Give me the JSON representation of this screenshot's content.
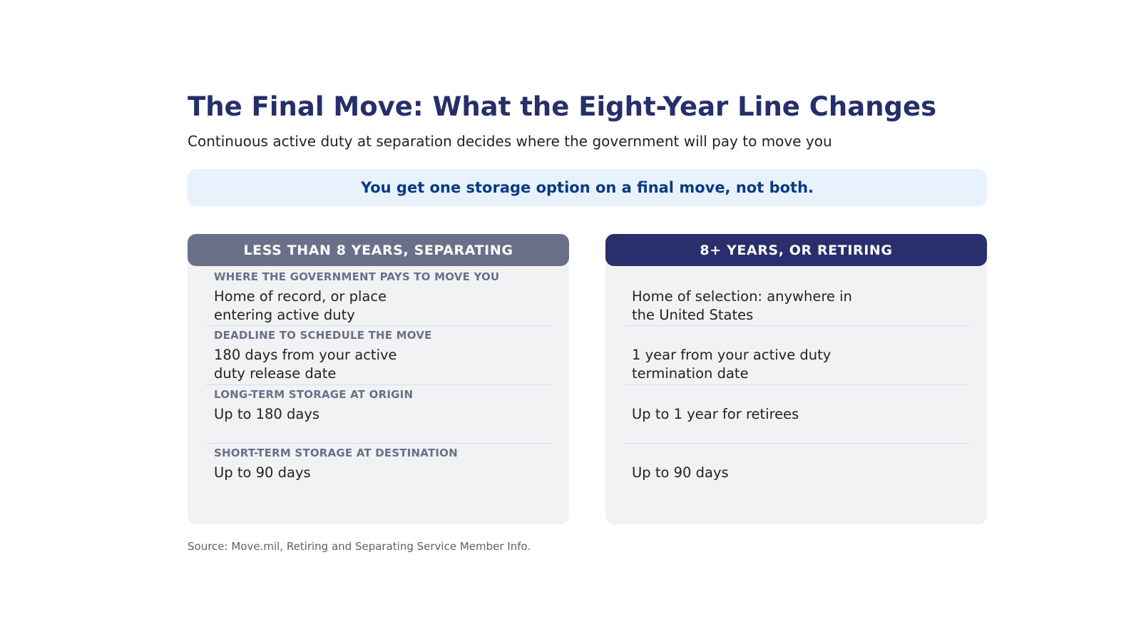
{
  "title": "The Final Move: What the Eight-Year Line Changes",
  "subtitle": "Continuous active duty at separation decides where the government will pay to move you",
  "callout": "You get one storage option on a final move, not both.",
  "columns": [
    {
      "header": "LESS THAN 8 YEARS, SEPARATING",
      "rows": [
        {
          "label": "WHERE THE GOVERNMENT PAYS TO MOVE YOU",
          "value": "Home of record, or place entering active duty"
        },
        {
          "label": "DEADLINE TO SCHEDULE THE MOVE",
          "value": "180 days from your active duty release date"
        },
        {
          "label": "LONG-TERM STORAGE AT ORIGIN",
          "value": "Up to 180 days"
        },
        {
          "label": "SHORT-TERM STORAGE AT DESTINATION",
          "value": "Up to 90 days"
        }
      ]
    },
    {
      "header": "8+ YEARS, OR RETIRING",
      "rows": [
        {
          "value": "Home of selection: anywhere in the United States"
        },
        {
          "value": "1 year from your active duty termination date"
        },
        {
          "value": "Up to 1 year for retirees"
        },
        {
          "value": "Up to 90 days"
        }
      ]
    }
  ],
  "source": "Source: Move.mil, Retiring and Separating Service Member Info.",
  "colors": {
    "title": "#262f6a",
    "callout_bg": "#e8f2fc",
    "callout_text": "#0b3a82",
    "left_header": "#6b7089",
    "right_header": "#292f6c",
    "card_bg": "#f1f2f4"
  }
}
